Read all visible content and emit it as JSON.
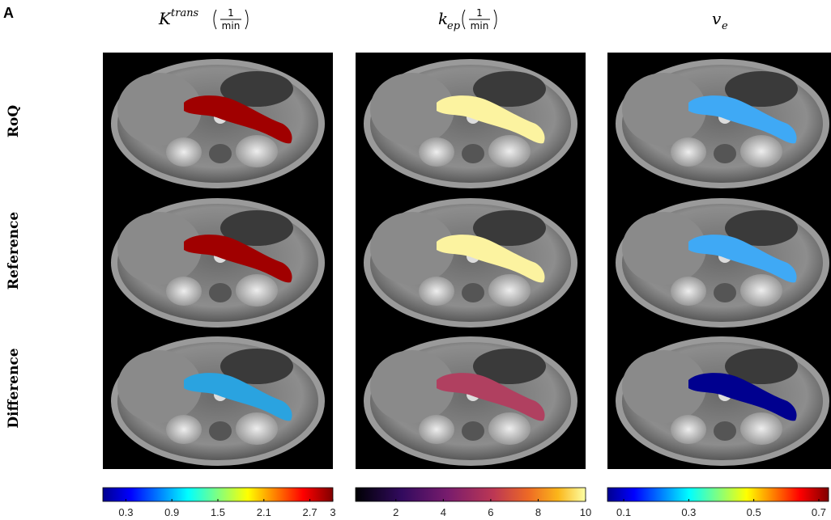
{
  "panel_label": "A",
  "columns": [
    {
      "symbol": "K",
      "superscript": "trans",
      "unit_numerator": "1",
      "unit_denominator": "min"
    },
    {
      "symbol": "k",
      "subscript": "ep",
      "unit_numerator": "1",
      "unit_denominator": "min"
    },
    {
      "symbol": "v",
      "subscript": "e"
    }
  ],
  "rows": [
    "RoQ",
    "Reference",
    "Difference"
  ],
  "colorbars": [
    {
      "colormap": "jet",
      "lim": [
        0,
        3
      ],
      "ticks": [
        0.3,
        0.9,
        1.5,
        2.1,
        2.7,
        3
      ]
    },
    {
      "colormap": "inferno",
      "lim": [
        0.3,
        10
      ],
      "ticks": [
        2,
        4,
        6,
        8,
        10
      ]
    },
    {
      "colormap": "jet",
      "lim": [
        0.05,
        0.73
      ],
      "ticks": [
        0.1,
        0.3,
        0.5,
        0.7
      ]
    }
  ]
}
